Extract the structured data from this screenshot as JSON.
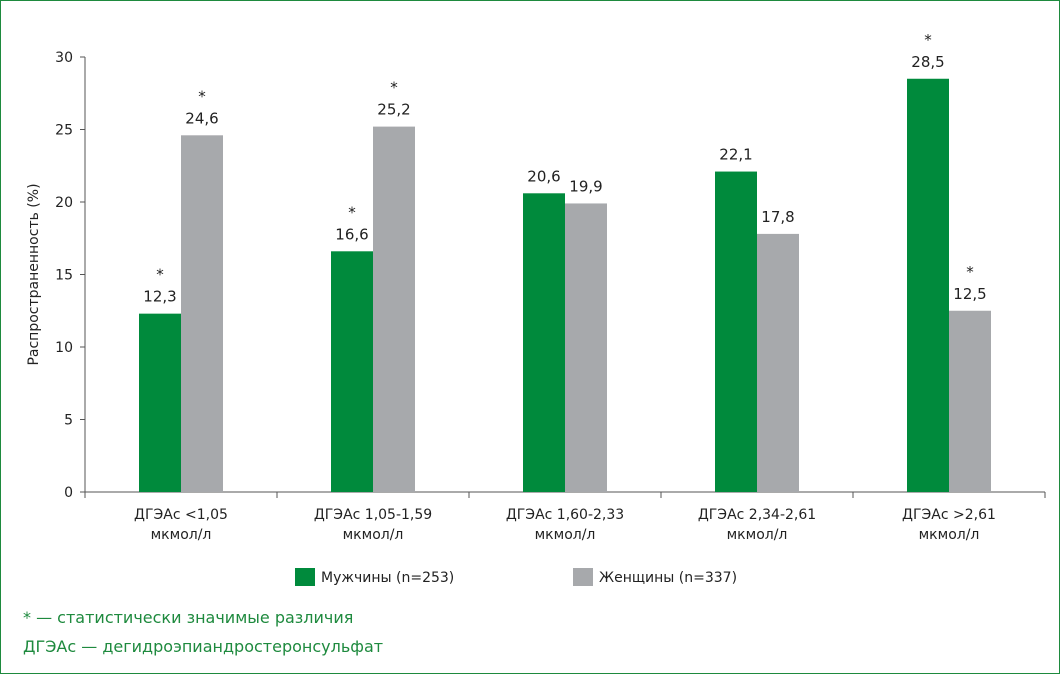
{
  "chart_data": {
    "type": "bar",
    "title": "",
    "xlabel": "",
    "ylabel": "Распространенность (%)",
    "ylim": [
      0,
      30
    ],
    "yticks": [
      0,
      5,
      10,
      15,
      20,
      25,
      30
    ],
    "categories": [
      [
        "ДГЭАс <1,05",
        "мкмол/л"
      ],
      [
        "ДГЭАс 1,05-1,59",
        "мкмол/л"
      ],
      [
        "ДГЭАс 1,60-2,33",
        "мкмол/л"
      ],
      [
        "ДГЭАс 2,34-2,61",
        "мкмол/л"
      ],
      [
        "ДГЭАс >2,61",
        "мкмол/л"
      ]
    ],
    "series": [
      {
        "name": "Мужчины (n=253)",
        "color": "#008a3c",
        "values": [
          12.3,
          16.6,
          20.6,
          22.1,
          28.5
        ],
        "labels": [
          "12,3",
          "16,6",
          "20,6",
          "22,1",
          "28,5"
        ],
        "significant": [
          true,
          true,
          false,
          false,
          true
        ]
      },
      {
        "name": "Женщины (n=337)",
        "color": "#a7a9ac",
        "values": [
          24.6,
          25.2,
          19.9,
          17.8,
          12.5
        ],
        "labels": [
          "24,6",
          "25,2",
          "19,9",
          "17,8",
          "12,5"
        ],
        "significant": [
          true,
          true,
          false,
          false,
          true
        ]
      }
    ],
    "significance_marker": "*",
    "grid": false,
    "legend_position": "bottom"
  },
  "footnotes": [
    "* — статистически значимые различия",
    "ДГЭАс — дегидроэпиандростеронсульфат"
  ]
}
